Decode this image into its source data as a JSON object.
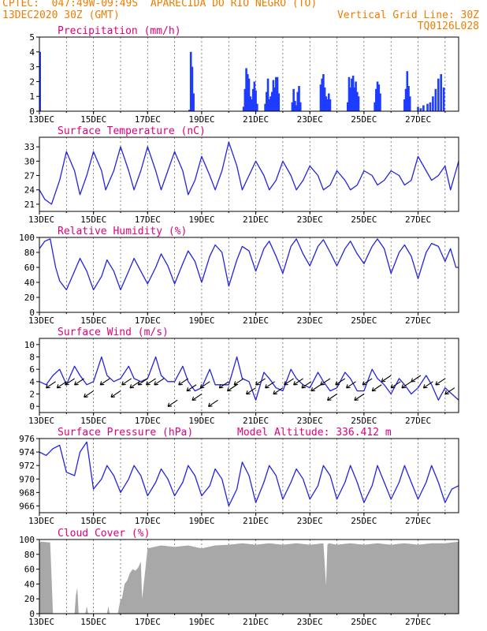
{
  "header": {
    "line1_left": "CPTEC:  047:49W-09:49S  APARECIDA DO RIO NEGRO (TO)",
    "line2_left": "13DEC2020 30Z (GMT)",
    "line2_right": "Vertical Grid Line: 30Z",
    "line3_right": "TQ0126L028"
  },
  "colors": {
    "header": "#f07c00",
    "title": "#e0007a",
    "series": "#2323e0",
    "bars": "#1e3cff",
    "cloud": "#a8a8a8",
    "wind_arrow": "#000000"
  },
  "x_ticks": [
    "13DEC",
    "15DEC",
    "17DEC",
    "19DEC",
    "21DEC",
    "23DEC",
    "25DEC",
    "27DEC"
  ],
  "extra_label": "Model Altitude: 336.412 m",
  "chart_data": [
    {
      "type": "bar",
      "title": "Precipitation (mm/h)",
      "x_domain_days": [
        13,
        28.5
      ],
      "ylim": [
        0,
        5
      ],
      "yticks": [
        0,
        1,
        2,
        3,
        4,
        5
      ],
      "x": [
        13.02,
        18.55,
        18.6,
        18.65,
        18.7,
        20.55,
        20.6,
        20.65,
        20.7,
        20.75,
        20.8,
        20.85,
        20.9,
        20.95,
        21.0,
        21.05,
        21.35,
        21.4,
        21.45,
        21.5,
        21.55,
        21.6,
        21.65,
        21.7,
        21.75,
        21.8,
        21.85,
        22.35,
        22.4,
        22.45,
        22.5,
        22.55,
        22.6,
        22.65,
        23.4,
        23.45,
        23.5,
        23.55,
        23.6,
        23.65,
        23.7,
        23.75,
        24.4,
        24.45,
        24.5,
        24.55,
        24.6,
        24.65,
        24.7,
        24.75,
        24.8,
        25.4,
        25.45,
        25.5,
        25.55,
        25.6,
        26.5,
        26.55,
        26.6,
        26.65,
        26.7,
        27.0,
        27.1,
        27.2,
        27.35,
        27.45,
        27.55,
        27.65,
        27.75,
        27.85,
        27.95
      ],
      "values": [
        4.0,
        0.1,
        4.0,
        3.0,
        1.2,
        0.3,
        1.5,
        2.9,
        2.5,
        2.2,
        1.0,
        0.8,
        1.5,
        2.0,
        1.4,
        0.5,
        0.5,
        1.3,
        2.2,
        0.8,
        1.0,
        1.3,
        2.1,
        1.6,
        2.3,
        2.3,
        1.2,
        0.6,
        1.5,
        0.7,
        0.4,
        1.3,
        1.7,
        0.6,
        1.8,
        2.2,
        2.5,
        1.6,
        1.0,
        0.8,
        1.2,
        0.8,
        0.6,
        2.3,
        1.6,
        2.2,
        2.4,
        1.6,
        2.0,
        1.3,
        1.0,
        0.6,
        1.5,
        2.0,
        1.8,
        1.2,
        0.8,
        1.5,
        2.7,
        1.7,
        1.0,
        0.3,
        0.2,
        0.4,
        0.5,
        0.6,
        1.0,
        1.5,
        2.2,
        2.5,
        1.6
      ]
    },
    {
      "type": "line",
      "title": "Surface Temperature (nC)",
      "x_domain_days": [
        13,
        28.5
      ],
      "ylim": [
        19.5,
        35
      ],
      "yticks": [
        21,
        24,
        27,
        30,
        33
      ],
      "x": [
        13.0,
        13.2,
        13.45,
        13.75,
        14.0,
        14.3,
        14.5,
        14.75,
        15.0,
        15.3,
        15.45,
        15.75,
        16.0,
        16.3,
        16.5,
        16.75,
        17.0,
        17.3,
        17.5,
        17.75,
        18.0,
        18.3,
        18.5,
        18.75,
        19.0,
        19.3,
        19.5,
        19.75,
        20.0,
        20.3,
        20.5,
        20.75,
        21.0,
        21.3,
        21.5,
        21.75,
        22.0,
        22.3,
        22.5,
        22.75,
        23.0,
        23.3,
        23.5,
        23.75,
        24.0,
        24.3,
        24.5,
        24.75,
        25.0,
        25.3,
        25.5,
        25.75,
        26.0,
        26.3,
        26.5,
        26.75,
        27.0,
        27.3,
        27.5,
        27.75,
        28.0,
        28.2,
        28.4,
        28.5
      ],
      "values": [
        24,
        22,
        21,
        26,
        32,
        28,
        23,
        27,
        32,
        28,
        24,
        28,
        33,
        28,
        24,
        28,
        33,
        28,
        24,
        28,
        32,
        28,
        23,
        26,
        31,
        27,
        24,
        28,
        34,
        29,
        24,
        27,
        30,
        27,
        24,
        26,
        30,
        27,
        24,
        26,
        29,
        27,
        24,
        25,
        28,
        26,
        24,
        25,
        28,
        27,
        25,
        26,
        28,
        27,
        25,
        26,
        31,
        28,
        26,
        27,
        29,
        24,
        28,
        30
      ]
    },
    {
      "type": "line",
      "title": "Relative Humidity (%)",
      "x_domain_days": [
        13,
        28.5
      ],
      "ylim": [
        0,
        100
      ],
      "yticks": [
        0,
        20,
        40,
        60,
        80,
        100
      ],
      "x": [
        13.0,
        13.2,
        13.4,
        13.6,
        13.75,
        14.0,
        14.3,
        14.5,
        14.75,
        15.0,
        15.3,
        15.5,
        15.75,
        16.0,
        16.3,
        16.5,
        16.75,
        17.0,
        17.3,
        17.5,
        17.75,
        18.0,
        18.3,
        18.5,
        18.75,
        19.0,
        19.3,
        19.5,
        19.75,
        20.0,
        20.3,
        20.5,
        20.75,
        21.0,
        21.3,
        21.5,
        21.75,
        22.0,
        22.3,
        22.5,
        22.75,
        23.0,
        23.3,
        23.5,
        23.75,
        24.0,
        24.3,
        24.5,
        24.75,
        25.0,
        25.3,
        25.5,
        25.75,
        26.0,
        26.3,
        26.5,
        26.75,
        27.0,
        27.3,
        27.5,
        27.75,
        28.0,
        28.2,
        28.4,
        28.5
      ],
      "values": [
        85,
        95,
        98,
        60,
        42,
        30,
        55,
        72,
        55,
        30,
        48,
        70,
        55,
        30,
        55,
        72,
        55,
        38,
        60,
        78,
        62,
        38,
        65,
        82,
        68,
        40,
        75,
        90,
        80,
        35,
        70,
        88,
        82,
        55,
        85,
        95,
        75,
        52,
        88,
        98,
        78,
        62,
        88,
        97,
        80,
        62,
        85,
        95,
        78,
        65,
        88,
        98,
        85,
        52,
        80,
        90,
        75,
        45,
        80,
        92,
        88,
        68,
        85,
        60,
        60
      ]
    },
    {
      "type": "line",
      "title": "Surface Wind (m/s)",
      "x_domain_days": [
        13,
        28.5
      ],
      "ylim": [
        -1,
        11
      ],
      "yticks": [
        0,
        2,
        4,
        6,
        8,
        10
      ],
      "x": [
        13.0,
        13.25,
        13.5,
        13.75,
        14.0,
        14.3,
        14.5,
        14.75,
        15.0,
        15.3,
        15.5,
        15.75,
        16.0,
        16.3,
        16.5,
        16.75,
        17.0,
        17.3,
        17.5,
        17.75,
        18.0,
        18.3,
        18.5,
        18.75,
        19.0,
        19.3,
        19.5,
        19.75,
        20.0,
        20.3,
        20.5,
        20.75,
        21.0,
        21.3,
        21.5,
        21.75,
        22.0,
        22.3,
        22.5,
        22.75,
        23.0,
        23.3,
        23.5,
        23.75,
        24.0,
        24.3,
        24.5,
        24.75,
        25.0,
        25.3,
        25.5,
        25.75,
        26.0,
        26.3,
        26.5,
        26.75,
        27.0,
        27.3,
        27.5,
        27.75,
        28.0,
        28.25,
        28.5
      ],
      "values": [
        4,
        3.5,
        5,
        6,
        3.5,
        6.5,
        5,
        3.5,
        4,
        8,
        5,
        4,
        4.5,
        6.5,
        4.5,
        4,
        4.5,
        8,
        5,
        4,
        4,
        6.5,
        4,
        2.5,
        3,
        6,
        3.5,
        3.5,
        3.5,
        8,
        4.5,
        4,
        1,
        5.5,
        4.5,
        3,
        2.5,
        6,
        4.5,
        3.5,
        3,
        5.5,
        4,
        2.5,
        3,
        5.5,
        4.5,
        2.5,
        2.5,
        6,
        4.5,
        3.5,
        2,
        4.5,
        3.5,
        2,
        3,
        5,
        3.5,
        1,
        3,
        2,
        1
      ],
      "arrows_x": [
        13.6,
        14.0,
        14.3,
        14.65,
        15.0,
        15.6,
        16.0,
        16.4,
        16.7,
        17.0,
        17.3,
        17.6,
        18.1,
        18.5,
        18.8,
        19.0,
        19.3,
        19.6,
        20.0,
        20.3,
        20.55,
        21.0,
        21.35,
        21.7,
        22.0,
        22.4,
        22.75,
        23.05,
        23.4,
        23.75,
        24.0,
        24.3,
        24.7,
        25.0,
        25.3,
        25.65,
        26.0,
        26.35,
        26.75,
        27.1,
        27.55,
        28.0,
        28.35
      ],
      "arrows_y": [
        4,
        4,
        4.5,
        4.5,
        2.5,
        4.5,
        2.5,
        4.5,
        4,
        4.5,
        4.5,
        4.5,
        1,
        4.5,
        3.5,
        2,
        4,
        1,
        4,
        3.5,
        4.5,
        3,
        4.5,
        4,
        3,
        4.5,
        4.5,
        4,
        3.5,
        4.5,
        2,
        4.5,
        4,
        2,
        4.5,
        3.5,
        5,
        4,
        4,
        5,
        4,
        4.5,
        3
      ]
    },
    {
      "type": "line",
      "title": "Surface Pressure (hPa)",
      "x_domain_days": [
        13,
        28.5
      ],
      "ylim": [
        965,
        976
      ],
      "yticks": [
        966,
        968,
        970,
        972,
        974,
        976
      ],
      "x": [
        13.0,
        13.25,
        13.5,
        13.75,
        14.0,
        14.3,
        14.5,
        14.75,
        15.0,
        15.3,
        15.5,
        15.75,
        16.0,
        16.3,
        16.5,
        16.75,
        17.0,
        17.3,
        17.5,
        17.75,
        18.0,
        18.3,
        18.5,
        18.75,
        19.0,
        19.3,
        19.5,
        19.75,
        20.0,
        20.3,
        20.5,
        20.75,
        21.0,
        21.3,
        21.5,
        21.75,
        22.0,
        22.3,
        22.5,
        22.75,
        23.0,
        23.3,
        23.5,
        23.75,
        24.0,
        24.3,
        24.5,
        24.75,
        25.0,
        25.3,
        25.5,
        25.75,
        26.0,
        26.3,
        26.5,
        26.75,
        27.0,
        27.3,
        27.5,
        27.75,
        28.0,
        28.25,
        28.5
      ],
      "values": [
        974,
        973.5,
        974.5,
        975,
        971,
        970.5,
        974,
        975.5,
        968.5,
        970,
        972,
        970.5,
        968,
        970,
        972,
        970.5,
        967.5,
        969.5,
        971.5,
        970,
        967.5,
        969.5,
        972,
        970.5,
        967.5,
        969,
        971.5,
        970,
        966,
        968.5,
        972.5,
        970.5,
        966.5,
        969.5,
        972,
        970.5,
        967,
        969.5,
        971.5,
        970,
        967,
        969,
        972,
        970.5,
        967,
        969.5,
        972,
        969.5,
        966.5,
        969,
        972,
        969.5,
        967,
        969.5,
        972,
        969.5,
        967,
        969.5,
        972,
        969.5,
        966.5,
        968.5,
        969
      ]
    },
    {
      "type": "area",
      "title": "Cloud Cover (%)",
      "x_domain_days": [
        13,
        28.5
      ],
      "ylim": [
        0,
        100
      ],
      "yticks": [
        0,
        20,
        40,
        60,
        80,
        100
      ],
      "x": [
        13.0,
        13.05,
        13.4,
        13.45,
        13.5,
        14.0,
        14.1,
        14.3,
        14.35,
        14.4,
        14.45,
        14.7,
        14.75,
        14.8,
        14.85,
        15.0,
        15.5,
        15.55,
        15.6,
        15.9,
        16.0,
        16.05,
        16.15,
        16.25,
        16.35,
        16.45,
        16.55,
        16.65,
        16.75,
        16.8,
        17.0,
        17.5,
        18.0,
        18.5,
        19.0,
        19.5,
        20.0,
        20.5,
        21.0,
        21.5,
        22.0,
        22.5,
        23.0,
        23.5,
        23.6,
        23.65,
        23.7,
        24.0,
        24.5,
        25.0,
        25.5,
        26.0,
        26.5,
        27.0,
        27.5,
        28.0,
        28.5
      ],
      "values": [
        95,
        97,
        96,
        50,
        0,
        0,
        0,
        0,
        25,
        35,
        0,
        0,
        10,
        0,
        0,
        0,
        0,
        10,
        0,
        0,
        20,
        20,
        40,
        45,
        55,
        60,
        58,
        62,
        70,
        20,
        88,
        92,
        90,
        92,
        88,
        92,
        93,
        95,
        93,
        95,
        93,
        95,
        93,
        95,
        38,
        93,
        95,
        93,
        95,
        93,
        95,
        93,
        95,
        93,
        95,
        95,
        97
      ]
    }
  ],
  "panel_titles": [
    "Precipitation (mm/h)",
    "Surface Temperature (nC)",
    "Relative Humidity (%)",
    "Surface Wind (m/s)",
    "Surface Pressure (hPa)",
    "Cloud Cover (%)"
  ]
}
